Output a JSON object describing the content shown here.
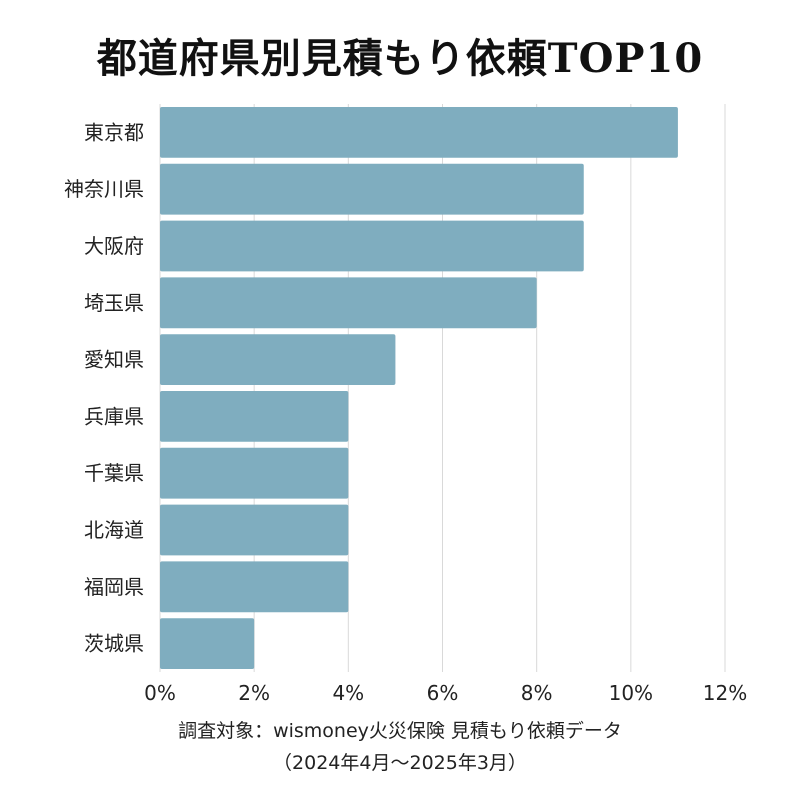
{
  "chart_data": {
    "type": "bar",
    "orientation": "horizontal",
    "title": "都道府県別見積もり依頼TOP10",
    "categories": [
      "東京都",
      "神奈川県",
      "大阪府",
      "埼玉県",
      "愛知県",
      "兵庫県",
      "千葉県",
      "北海道",
      "福岡県",
      "茨城県"
    ],
    "values": [
      11,
      9,
      9,
      8,
      5,
      4,
      4,
      4,
      4,
      2
    ],
    "xlim": [
      0,
      12
    ],
    "xticks": [
      0,
      2,
      4,
      6,
      8,
      10,
      12
    ],
    "tick_labels": [
      "0%",
      "2%",
      "4%",
      "6%",
      "8%",
      "10%",
      "12%"
    ],
    "value_unit": "%",
    "xlabel": "",
    "ylabel": "",
    "grid": true,
    "bar_color": "#7fadbf",
    "grid_color": "#d9d9d9"
  },
  "source": {
    "line1": "調査対象：wismoney火災保険 見積もり依頼データ",
    "line2": "（2024年4月〜2025年3月）"
  }
}
